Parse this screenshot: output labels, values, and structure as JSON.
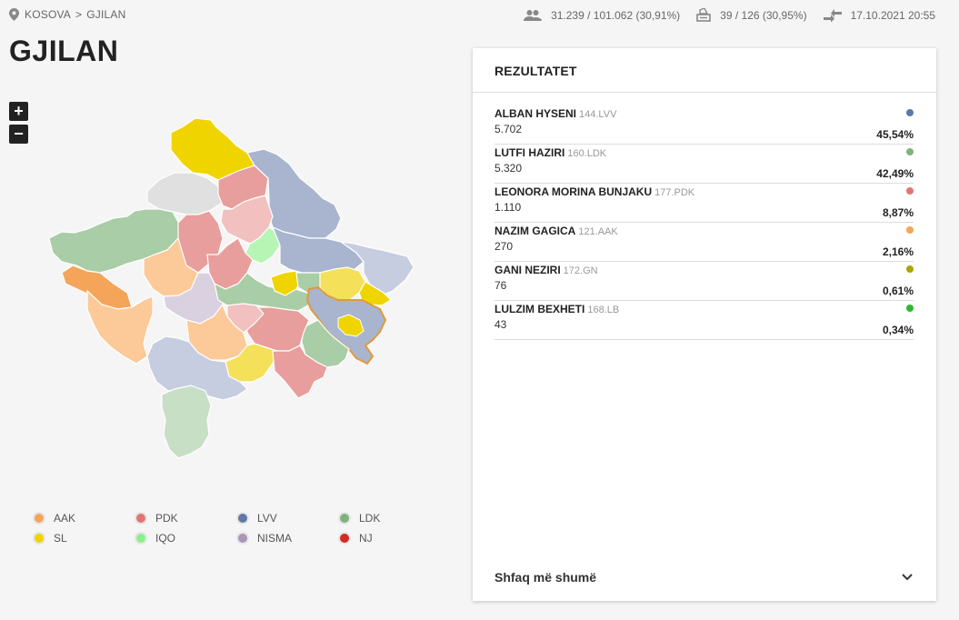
{
  "breadcrumb": {
    "country": "KOSOVA",
    "separator": ">",
    "municipality": "GJILAN"
  },
  "stats": {
    "voters": "31.239 / 101.062 (30,91%)",
    "stations": "39 / 126 (30,95%)",
    "updated": "17.10.2021 20:55"
  },
  "page_title": "GJILAN",
  "zoom": {
    "in": "+",
    "out": "−"
  },
  "legend": [
    {
      "label": "AAK",
      "color": "#f5a55a"
    },
    {
      "label": "PDK",
      "color": "#e07673"
    },
    {
      "label": "LVV",
      "color": "#5f78a8"
    },
    {
      "label": "LDK",
      "color": "#7fb37c"
    },
    {
      "label": "SL",
      "color": "#f0d400"
    },
    {
      "label": "IQO",
      "color": "#8cf08a"
    },
    {
      "label": "NISMA",
      "color": "#a996b6"
    },
    {
      "label": "NJ",
      "color": "#d22b22"
    }
  ],
  "results_panel": {
    "title": "REZULTATET",
    "candidates": [
      {
        "name": "ALBAN HYSENI",
        "code": "144.LVV",
        "votes": "5.702",
        "percent": "45,54%",
        "color": "#5f78a8"
      },
      {
        "name": "LUTFI HAZIRI",
        "code": "160.LDK",
        "votes": "5.320",
        "percent": "42,49%",
        "color": "#7fb37c"
      },
      {
        "name": "LEONORA MORINA BUNJAKU",
        "code": "177.PDK",
        "votes": "1.110",
        "percent": "8,87%",
        "color": "#e07673"
      },
      {
        "name": "NAZIM GAGICA",
        "code": "121.AAK",
        "votes": "270",
        "percent": "2,16%",
        "color": "#f5a55a"
      },
      {
        "name": "GANI NEZIRI",
        "code": "172.GN",
        "votes": "76",
        "percent": "0,61%",
        "color": "#a8a800"
      },
      {
        "name": "LULZIM BEXHETI",
        "code": "168.LB",
        "votes": "43",
        "percent": "0,34%",
        "color": "#2eb82e"
      }
    ],
    "show_more": "Shfaq më shumë"
  }
}
